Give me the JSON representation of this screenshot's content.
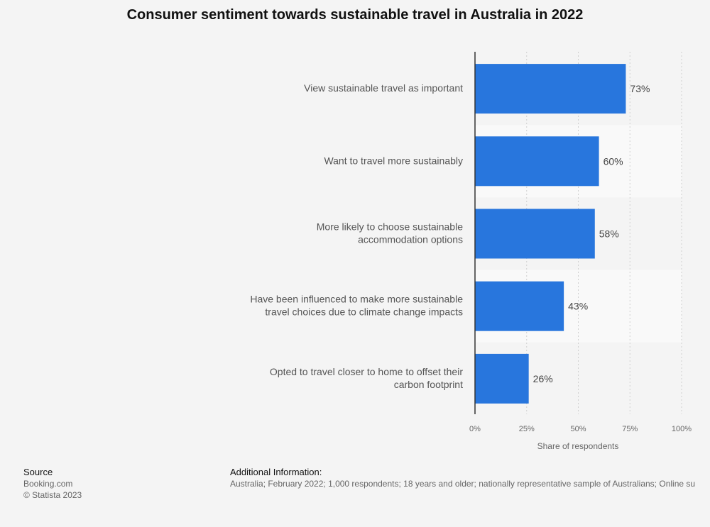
{
  "chart_data": {
    "type": "bar",
    "orientation": "horizontal",
    "title": "Consumer sentiment towards sustainable travel in Australia in 2022",
    "categories": [
      [
        "View sustainable travel as important"
      ],
      [
        "Want to travel more sustainably"
      ],
      [
        "More likely to choose sustainable",
        "accommodation options"
      ],
      [
        "Have been influenced to make more sustainable",
        "travel choices due to climate change impacts"
      ],
      [
        "Opted to travel closer to home to offset their",
        "carbon footprint"
      ]
    ],
    "values": [
      73,
      60,
      58,
      43,
      26
    ],
    "value_labels": [
      "73%",
      "60%",
      "58%",
      "43%",
      "26%"
    ],
    "xlim": [
      0,
      100
    ],
    "ticks": [
      0,
      25,
      50,
      75,
      100
    ],
    "tick_labels": [
      "0%",
      "25%",
      "50%",
      "75%",
      "100%"
    ],
    "xlabel": "Share of respondents",
    "bar_color": "#2876dd",
    "grid": true
  },
  "footer": {
    "source_heading": "Source",
    "source_name": "Booking.com",
    "copyright": "© Statista 2023",
    "additional_heading": "Additional Information:",
    "additional_text": "Australia; February 2022; 1,000 respondents; 18 years and older; nationally representative sample of Australians; Online su"
  }
}
